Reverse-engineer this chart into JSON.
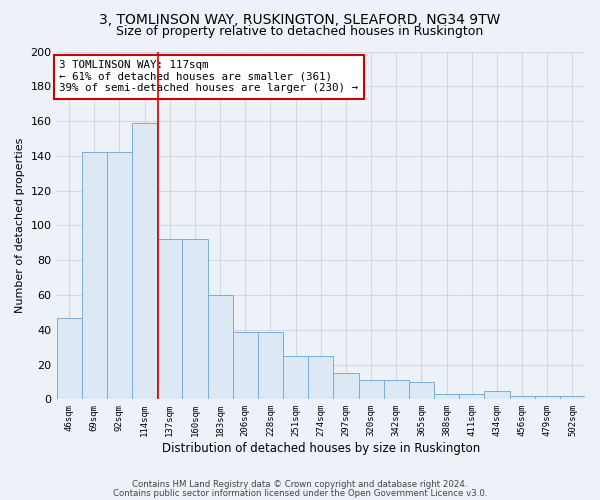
{
  "title": "3, TOMLINSON WAY, RUSKINGTON, SLEAFORD, NG34 9TW",
  "subtitle": "Size of property relative to detached houses in Ruskington",
  "xlabel": "Distribution of detached houses by size in Ruskington",
  "ylabel": "Number of detached properties",
  "bin_labels": [
    "46sqm",
    "69sqm",
    "92sqm",
    "114sqm",
    "137sqm",
    "160sqm",
    "183sqm",
    "206sqm",
    "228sqm",
    "251sqm",
    "274sqm",
    "297sqm",
    "320sqm",
    "342sqm",
    "365sqm",
    "388sqm",
    "411sqm",
    "434sqm",
    "456sqm",
    "479sqm",
    "502sqm"
  ],
  "bar_values": [
    47,
    142,
    142,
    159,
    92,
    92,
    60,
    39,
    39,
    25,
    25,
    15,
    11,
    11,
    10,
    3,
    3,
    5,
    2,
    2,
    2
  ],
  "bar_color": "#dce8f3",
  "bar_edge_color": "#7aaed6",
  "annotation_line1": "3 TOMLINSON WAY: 117sqm",
  "annotation_line2": "← 61% of detached houses are smaller (361)",
  "annotation_line3": "39% of semi-detached houses are larger (230) →",
  "annotation_box_facecolor": "#ffffff",
  "annotation_border_color": "#cc0000",
  "vline_x": 3.55,
  "vline_color": "#cc0000",
  "footer1": "Contains HM Land Registry data © Crown copyright and database right 2024.",
  "footer2": "Contains public sector information licensed under the Open Government Licence v3.0.",
  "ylim": [
    0,
    200
  ],
  "background_color": "#edf2f8",
  "grid_color": "#d0d8e4",
  "title_fontsize": 10,
  "subtitle_fontsize": 9
}
